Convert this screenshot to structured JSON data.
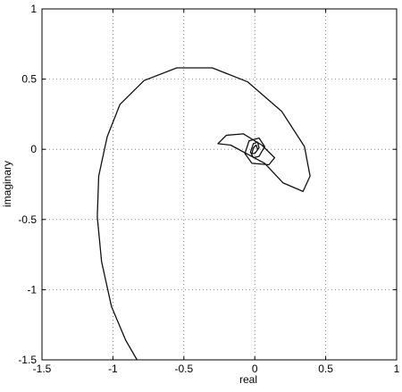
{
  "chart_data": {
    "type": "line",
    "title": "",
    "xlabel": "real",
    "ylabel": "imaginary",
    "xlim": [
      -1.5,
      1
    ],
    "ylim": [
      -1.5,
      1
    ],
    "xticks": [
      -1.5,
      -1,
      -0.5,
      0,
      0.5,
      1
    ],
    "yticks": [
      -1.5,
      -1,
      -0.5,
      0,
      0.5,
      1
    ],
    "xtick_labels": [
      "-1.5",
      "-1",
      "-0.5",
      "0",
      "0.5",
      "1"
    ],
    "ytick_labels": [
      "-1.5",
      "-1",
      "-0.5",
      "0",
      "0.5",
      "1"
    ],
    "grid": true,
    "line_color": "#111111",
    "series": [
      {
        "x": [
          -0.83,
          -0.91,
          -1.01,
          -1.08,
          -1.11,
          -1.1,
          -1.04,
          -0.95,
          -0.78,
          -0.55,
          -0.3,
          -0.05,
          0.19,
          0.35,
          0.39,
          0.34,
          0.2,
          0.07,
          -0.17,
          -0.26,
          -0.2,
          -0.08,
          0.05,
          0.14,
          0.1,
          -0.02,
          -0.07,
          -0.04,
          0.03,
          0.07,
          0.03,
          -0.01,
          -0.03,
          -0.01,
          0.02,
          0.03,
          0.0,
          -0.02,
          -0.01,
          0.01,
          0.02
        ],
        "y": [
          -1.5,
          -1.36,
          -1.12,
          -0.8,
          -0.48,
          -0.19,
          0.09,
          0.32,
          0.49,
          0.58,
          0.58,
          0.48,
          0.27,
          0.02,
          -0.19,
          -0.3,
          -0.24,
          -0.1,
          0.03,
          0.04,
          0.1,
          0.11,
          0.03,
          -0.06,
          -0.11,
          -0.1,
          -0.03,
          0.06,
          0.08,
          0.02,
          -0.05,
          -0.06,
          -0.02,
          0.04,
          0.05,
          0.01,
          -0.03,
          -0.03,
          0.01,
          0.03,
          0.0
        ]
      }
    ]
  }
}
